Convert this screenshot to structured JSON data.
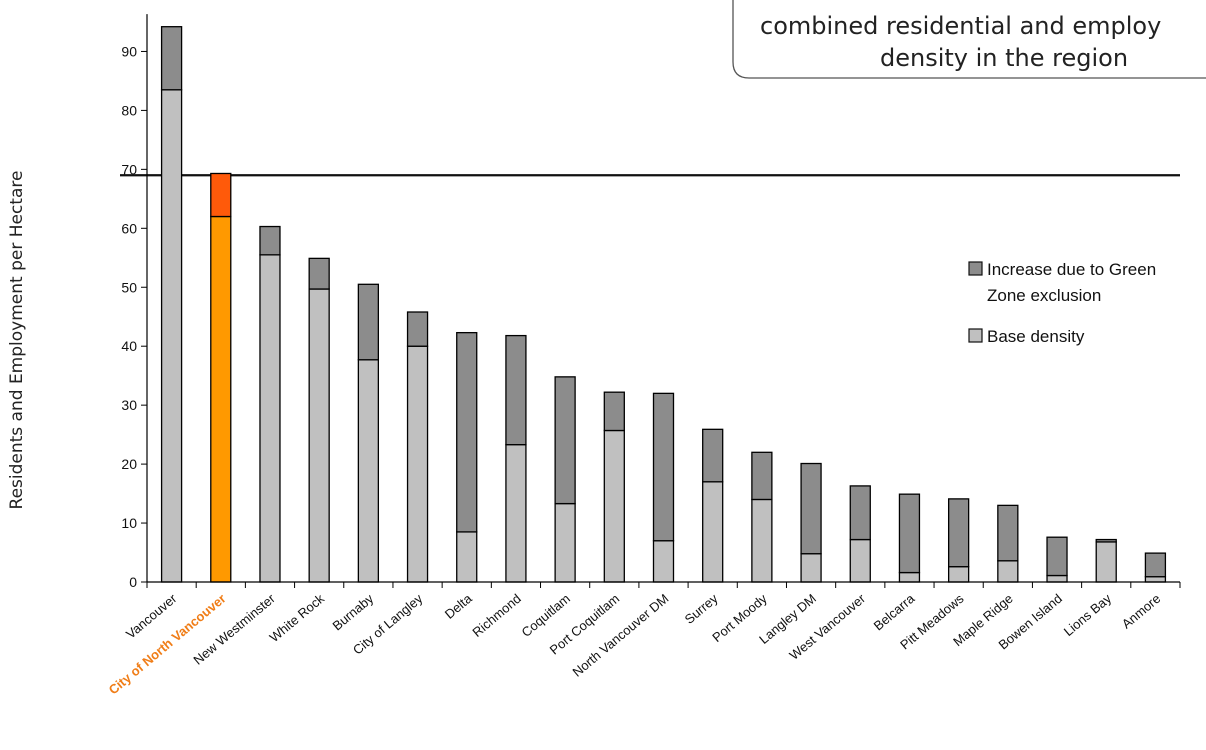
{
  "chart_data": {
    "type": "bar",
    "stacked": true,
    "ylabel": "Residents and Employment per Hectare",
    "xlabel": "",
    "ylim": [
      0,
      96
    ],
    "yticks": [
      0,
      10,
      20,
      30,
      40,
      50,
      60,
      70,
      80,
      90
    ],
    "reference_line": 69,
    "highlight_category": "City of North Vancouver",
    "categories": [
      "Vancouver",
      "City of North Vancouver",
      "New Westminster",
      "White Rock",
      "Burnaby",
      "City of Langley",
      "Delta",
      "Richmond",
      "Coquitlam",
      "Port Coquitlam",
      "North Vancouver DM",
      "Surrey",
      "Port Moody",
      "Langley DM",
      "West Vancouver",
      "Belcarra",
      "Pitt Meadows",
      "Maple Ridge",
      "Bowen Island",
      "Lions Bay",
      "Anmore"
    ],
    "series": [
      {
        "name": "Base density",
        "values": [
          83.5,
          62,
          55.5,
          49.7,
          37.7,
          40,
          8.5,
          23.3,
          13.3,
          25.7,
          7,
          17,
          14,
          4.8,
          7.2,
          1.6,
          2.6,
          3.6,
          1.1,
          6.8,
          0.9
        ]
      },
      {
        "name": "Increase due to Green Zone exclusion",
        "values": [
          10.7,
          7.3,
          4.8,
          5.2,
          12.8,
          5.8,
          33.8,
          18.5,
          21.5,
          6.5,
          25,
          8.9,
          8,
          15.3,
          9.1,
          13.3,
          11.5,
          9.4,
          6.5,
          0.4,
          4
        ]
      }
    ],
    "colors": {
      "base": "#c0c0c0",
      "increase": "#8c8c8c",
      "highlight_base": "#ff9900",
      "highlight_increase": "#ff5a0a",
      "highlight_label": "#f07d17"
    },
    "legend": {
      "placement": "right",
      "items": [
        {
          "label_lines": [
            "Increase due to Green",
            "Zone exclusion"
          ],
          "series": "increase"
        },
        {
          "label_lines": [
            "Base density"
          ],
          "series": "base"
        }
      ]
    },
    "callout": {
      "lines": [
        "combined residential and employ",
        "density in the region"
      ]
    }
  }
}
